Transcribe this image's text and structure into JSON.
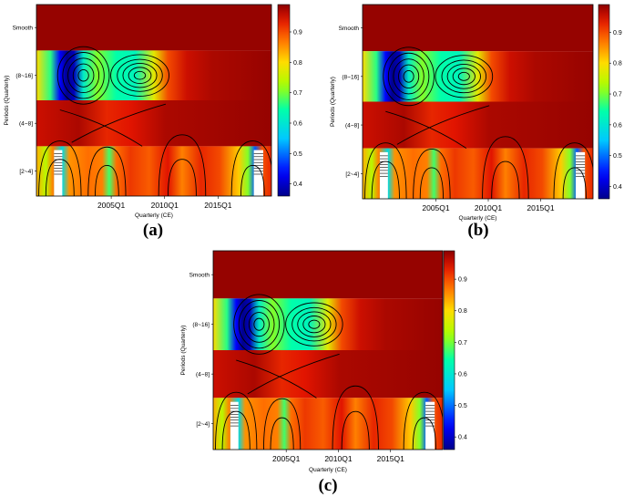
{
  "chart_data": [
    {
      "type": "heatmap",
      "panel_label": "(a)",
      "xlabel": "Quarterly (CE)",
      "ylabel": "Periods (Quarterly)",
      "x_ticks": [
        "2005Q1",
        "2010Q1",
        "2015Q1"
      ],
      "x_tick_years": [
        2005,
        2010,
        2015
      ],
      "x_range": [
        1998,
        2020
      ],
      "y_bands": [
        "Smooth",
        "(8~16]",
        "(4~8]",
        "[2~4]"
      ],
      "colorbar_ticks": [
        0.4,
        0.5,
        0.6,
        0.7,
        0.8,
        0.9
      ],
      "colorbar_range": [
        0.36,
        0.99
      ],
      "colors": {
        "low": "#00008b",
        "mid": "#00ff7f",
        "high": "#8b0000"
      }
    },
    {
      "type": "heatmap",
      "panel_label": "(b)",
      "xlabel": "Quarterly (CE)",
      "ylabel": "Periods (Quarterly)",
      "x_ticks": [
        "2005Q1",
        "2010Q1",
        "2015Q1"
      ],
      "x_tick_years": [
        2005,
        2010,
        2015
      ],
      "x_range": [
        1998,
        2020
      ],
      "y_bands": [
        "Smooth",
        "(8~16]",
        "(4~8]",
        "[2~4]"
      ],
      "colorbar_ticks": [
        0.4,
        0.5,
        0.6,
        0.7,
        0.8,
        0.9
      ],
      "colorbar_range": [
        0.36,
        0.99
      ],
      "colors": {
        "low": "#00008b",
        "mid": "#00ff7f",
        "high": "#8b0000"
      }
    },
    {
      "type": "heatmap",
      "panel_label": "(c)",
      "xlabel": "Quarterly (CE)",
      "ylabel": "Periods (Quarterly)",
      "x_ticks": [
        "2005Q1",
        "2010Q1",
        "2015Q1"
      ],
      "x_tick_years": [
        2005,
        2010,
        2015
      ],
      "x_range": [
        1998,
        2020
      ],
      "y_bands": [
        "Smooth",
        "(8~16]",
        "(4~8]",
        "[2~4]"
      ],
      "colorbar_ticks": [
        0.4,
        0.5,
        0.6,
        0.7,
        0.8,
        0.9
      ],
      "colorbar_range": [
        0.36,
        0.99
      ],
      "colors": {
        "low": "#00008b",
        "mid": "#00ff7f",
        "high": "#8b0000"
      }
    }
  ]
}
